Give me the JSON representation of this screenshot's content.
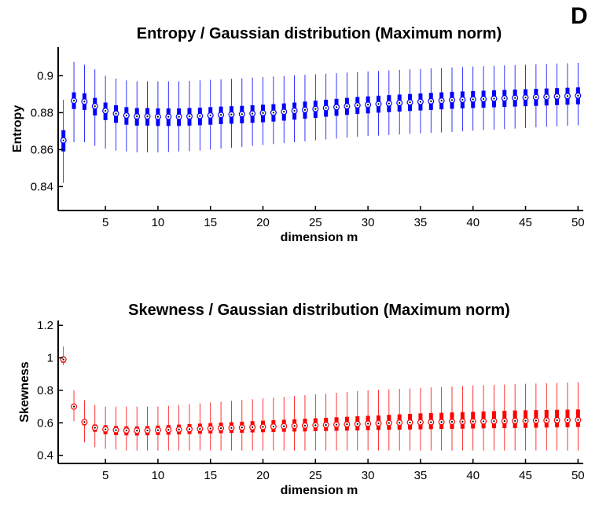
{
  "panel_label": "D",
  "chart_data": [
    {
      "type": "box",
      "title": "Entropy / Gaussian distribution (Maximum norm)",
      "xlabel": "dimension m",
      "ylabel": "Entropy",
      "xlim": [
        1,
        50
      ],
      "ylim": [
        0.827,
        0.9155
      ],
      "xticks": [
        5,
        10,
        15,
        20,
        25,
        30,
        35,
        40,
        45,
        50
      ],
      "yticks": [
        0.84,
        0.86,
        0.88,
        0.9
      ],
      "ytick_labels": [
        "0.84",
        "0.86",
        "0.88",
        "0.9"
      ],
      "color": "#0000ff",
      "box_alpha": 1,
      "median_marker": "circle",
      "grid": false,
      "x": [
        1,
        2,
        3,
        4,
        5,
        6,
        7,
        8,
        9,
        10,
        11,
        12,
        13,
        14,
        15,
        16,
        17,
        18,
        19,
        20,
        21,
        22,
        23,
        24,
        25,
        26,
        27,
        28,
        29,
        30,
        31,
        32,
        33,
        34,
        35,
        36,
        37,
        38,
        39,
        40,
        41,
        42,
        43,
        44,
        45,
        46,
        47,
        48,
        49,
        50
      ],
      "median": [
        0.865,
        0.8865,
        0.886,
        0.8835,
        0.881,
        0.8795,
        0.8785,
        0.878,
        0.878,
        0.8778,
        0.8778,
        0.8778,
        0.878,
        0.8782,
        0.8785,
        0.8788,
        0.879,
        0.8792,
        0.8795,
        0.8798,
        0.88,
        0.8805,
        0.881,
        0.8815,
        0.882,
        0.8825,
        0.883,
        0.8835,
        0.884,
        0.8843,
        0.8847,
        0.885,
        0.8853,
        0.8856,
        0.8859,
        0.8862,
        0.8865,
        0.8868,
        0.887,
        0.8872,
        0.8874,
        0.8876,
        0.8878,
        0.888,
        0.8882,
        0.8884,
        0.8886,
        0.8888,
        0.889,
        0.8892
      ],
      "q1": [
        0.859,
        0.882,
        0.8815,
        0.8785,
        0.876,
        0.8745,
        0.8735,
        0.873,
        0.873,
        0.8728,
        0.8728,
        0.8728,
        0.873,
        0.8732,
        0.8735,
        0.8738,
        0.874,
        0.8742,
        0.8745,
        0.8748,
        0.8752,
        0.8757,
        0.8762,
        0.8767,
        0.8772,
        0.8778,
        0.8783,
        0.8788,
        0.8793,
        0.8796,
        0.88,
        0.8803,
        0.8806,
        0.8809,
        0.8812,
        0.8815,
        0.8818,
        0.8821,
        0.8823,
        0.8825,
        0.8827,
        0.8829,
        0.8831,
        0.8833,
        0.8835,
        0.8837,
        0.8839,
        0.8841,
        0.8843,
        0.8845
      ],
      "q3": [
        0.8705,
        0.891,
        0.8905,
        0.888,
        0.8855,
        0.884,
        0.883,
        0.8825,
        0.8825,
        0.8823,
        0.8823,
        0.8823,
        0.8825,
        0.8827,
        0.883,
        0.8833,
        0.8835,
        0.8837,
        0.884,
        0.8843,
        0.8846,
        0.885,
        0.8855,
        0.886,
        0.8865,
        0.887,
        0.8875,
        0.888,
        0.8885,
        0.8888,
        0.8892,
        0.8895,
        0.8898,
        0.8901,
        0.8904,
        0.8907,
        0.891,
        0.8913,
        0.8915,
        0.8917,
        0.8919,
        0.8921,
        0.8923,
        0.8925,
        0.8927,
        0.8929,
        0.8931,
        0.8933,
        0.8935,
        0.8937
      ],
      "whisker_low": [
        0.842,
        0.864,
        0.864,
        0.862,
        0.8605,
        0.8595,
        0.859,
        0.8585,
        0.8585,
        0.8585,
        0.8587,
        0.859,
        0.8592,
        0.8595,
        0.86,
        0.8605,
        0.861,
        0.8615,
        0.862,
        0.8625,
        0.863,
        0.8635,
        0.864,
        0.8645,
        0.865,
        0.8655,
        0.866,
        0.8665,
        0.867,
        0.8673,
        0.8676,
        0.8679,
        0.8682,
        0.8685,
        0.8688,
        0.869,
        0.8693,
        0.8696,
        0.8699,
        0.8702,
        0.8705,
        0.8708,
        0.8711,
        0.8714,
        0.8717,
        0.872,
        0.8723,
        0.8726,
        0.8729,
        0.8732
      ],
      "whisker_high": [
        0.887,
        0.9075,
        0.906,
        0.9035,
        0.9,
        0.8985,
        0.8975,
        0.897,
        0.897,
        0.897,
        0.897,
        0.897,
        0.8972,
        0.8975,
        0.8978,
        0.898,
        0.8983,
        0.8986,
        0.899,
        0.8993,
        0.8996,
        0.8999,
        0.9002,
        0.9005,
        0.9008,
        0.9011,
        0.9014,
        0.9017,
        0.902,
        0.9023,
        0.9026,
        0.9029,
        0.9032,
        0.9035,
        0.9037,
        0.904,
        0.9042,
        0.9045,
        0.9047,
        0.905,
        0.9052,
        0.9054,
        0.9056,
        0.9058,
        0.906,
        0.9062,
        0.9064,
        0.9066,
        0.9068,
        0.907
      ]
    },
    {
      "type": "box",
      "title": "Skewness / Gaussian distribution (Maximum norm)",
      "xlabel": "dimension m",
      "ylabel": "Skewness",
      "xlim": [
        1,
        50
      ],
      "ylim": [
        0.35,
        1.23
      ],
      "xticks": [
        5,
        10,
        15,
        20,
        25,
        30,
        35,
        40,
        45,
        50
      ],
      "yticks": [
        0.4,
        0.6,
        0.8,
        1.0,
        1.2
      ],
      "ytick_labels": [
        "0.4",
        "0.6",
        "0.8",
        "1",
        "1.2"
      ],
      "color": "#ff0000",
      "box_alpha": 1,
      "median_marker": "circle",
      "grid": false,
      "x": [
        1,
        2,
        3,
        4,
        5,
        6,
        7,
        8,
        9,
        10,
        11,
        12,
        13,
        14,
        15,
        16,
        17,
        18,
        19,
        20,
        21,
        22,
        23,
        24,
        25,
        26,
        27,
        28,
        29,
        30,
        31,
        32,
        33,
        34,
        35,
        36,
        37,
        38,
        39,
        40,
        41,
        42,
        43,
        44,
        45,
        46,
        47,
        48,
        49,
        50
      ],
      "median": [
        0.99,
        0.7,
        0.605,
        0.57,
        0.56,
        0.555,
        0.553,
        0.552,
        0.553,
        0.555,
        0.557,
        0.559,
        0.561,
        0.563,
        0.565,
        0.567,
        0.569,
        0.571,
        0.573,
        0.575,
        0.577,
        0.579,
        0.581,
        0.583,
        0.585,
        0.587,
        0.589,
        0.591,
        0.593,
        0.595,
        0.597,
        0.599,
        0.601,
        0.602,
        0.603,
        0.604,
        0.605,
        0.606,
        0.607,
        0.608,
        0.609,
        0.61,
        0.611,
        0.612,
        0.613,
        0.614,
        0.615,
        0.616,
        0.617,
        0.618
      ],
      "q1": [
        0.97,
        0.685,
        0.585,
        0.545,
        0.53,
        0.525,
        0.523,
        0.522,
        0.523,
        0.525,
        0.527,
        0.529,
        0.531,
        0.533,
        0.535,
        0.536,
        0.538,
        0.539,
        0.541,
        0.542,
        0.543,
        0.545,
        0.546,
        0.547,
        0.549,
        0.55,
        0.551,
        0.552,
        0.553,
        0.555,
        0.556,
        0.557,
        0.558,
        0.559,
        0.56,
        0.561,
        0.562,
        0.563,
        0.564,
        0.565,
        0.566,
        0.567,
        0.568,
        0.568,
        0.569,
        0.57,
        0.571,
        0.572,
        0.573,
        0.574
      ],
      "q3": [
        1.0,
        0.715,
        0.62,
        0.59,
        0.585,
        0.58,
        0.578,
        0.578,
        0.58,
        0.583,
        0.586,
        0.589,
        0.592,
        0.595,
        0.598,
        0.601,
        0.604,
        0.607,
        0.61,
        0.613,
        0.616,
        0.619,
        0.622,
        0.625,
        0.628,
        0.631,
        0.634,
        0.637,
        0.64,
        0.643,
        0.646,
        0.649,
        0.652,
        0.655,
        0.658,
        0.66,
        0.662,
        0.664,
        0.666,
        0.668,
        0.67,
        0.672,
        0.674,
        0.676,
        0.677,
        0.678,
        0.679,
        0.68,
        0.681,
        0.682
      ],
      "whisker_low": [
        0.955,
        0.61,
        0.48,
        0.45,
        0.44,
        0.435,
        0.43,
        0.43,
        0.43,
        0.43,
        0.43,
        0.43,
        0.43,
        0.43,
        0.43,
        0.43,
        0.43,
        0.43,
        0.43,
        0.43,
        0.43,
        0.43,
        0.43,
        0.43,
        0.43,
        0.43,
        0.43,
        0.43,
        0.43,
        0.43,
        0.43,
        0.43,
        0.43,
        0.43,
        0.43,
        0.43,
        0.43,
        0.43,
        0.43,
        0.43,
        0.43,
        0.43,
        0.43,
        0.43,
        0.43,
        0.43,
        0.43,
        0.43,
        0.43,
        0.43
      ],
      "whisker_high": [
        1.07,
        0.8,
        0.74,
        0.71,
        0.7,
        0.7,
        0.7,
        0.7,
        0.7,
        0.7,
        0.705,
        0.71,
        0.715,
        0.72,
        0.725,
        0.73,
        0.735,
        0.74,
        0.745,
        0.75,
        0.755,
        0.76,
        0.765,
        0.77,
        0.775,
        0.78,
        0.785,
        0.79,
        0.795,
        0.8,
        0.803,
        0.806,
        0.809,
        0.812,
        0.815,
        0.818,
        0.821,
        0.824,
        0.827,
        0.83,
        0.832,
        0.834,
        0.836,
        0.838,
        0.84,
        0.842,
        0.844,
        0.846,
        0.848,
        0.85
      ]
    }
  ]
}
